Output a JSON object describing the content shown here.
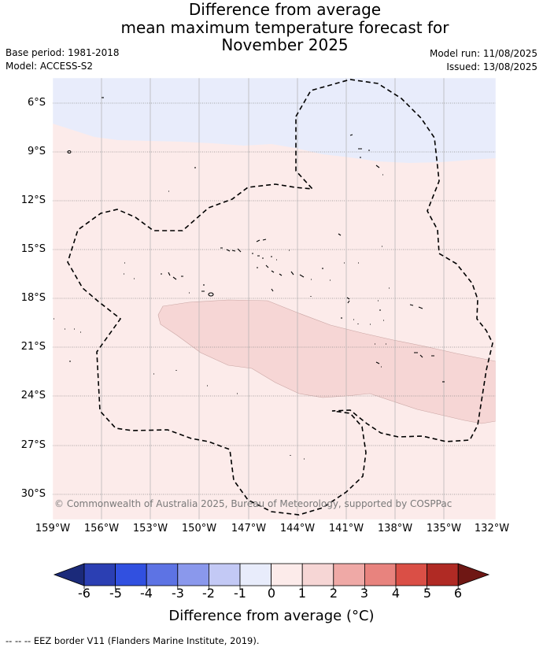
{
  "title": {
    "line1": "Difference from average",
    "line2": "mean maximum temperature forecast for",
    "line3": "November 2025"
  },
  "meta": {
    "base_period": "Base period: 1981-2018",
    "model": "Model: ACCESS-S2",
    "model_run": "Model run: 11/08/2025",
    "issued": "Issued: 13/08/2025"
  },
  "map": {
    "lat_labels": [
      "6°S",
      "9°S",
      "12°S",
      "15°S",
      "18°S",
      "21°S",
      "24°S",
      "27°S",
      "30°S"
    ],
    "lon_labels": [
      "159°W",
      "156°W",
      "153°W",
      "150°W",
      "147°W",
      "144°W",
      "141°W",
      "138°W",
      "135°W",
      "132°W"
    ],
    "copyright": "© Commonwealth of Australia 2025, Bureau of Meteorology, supported by COSPPac",
    "region_colors": {
      "minus1_to_0": "#e8ecfb",
      "0_to_1": "#fcebea",
      "1_to_2": "#f6d6d5"
    }
  },
  "colorbar": {
    "ticks": [
      "-6",
      "-5",
      "-4",
      "-3",
      "-2",
      "-1",
      "0",
      "1",
      "2",
      "3",
      "4",
      "5",
      "6"
    ],
    "colors": [
      "#1b2a7a",
      "#2b3fb3",
      "#3150e0",
      "#5d73e4",
      "#8a98ec",
      "#c3c9f5",
      "#e8ecfb",
      "#fcebea",
      "#f6d6d5",
      "#efa9a6",
      "#e8837e",
      "#da4f46",
      "#b02a24",
      "#6f1714"
    ],
    "title": "Difference from average (°C)"
  },
  "footer": "--  --  -- EEZ border V11 (Flanders Marine Institute, 2019)."
}
